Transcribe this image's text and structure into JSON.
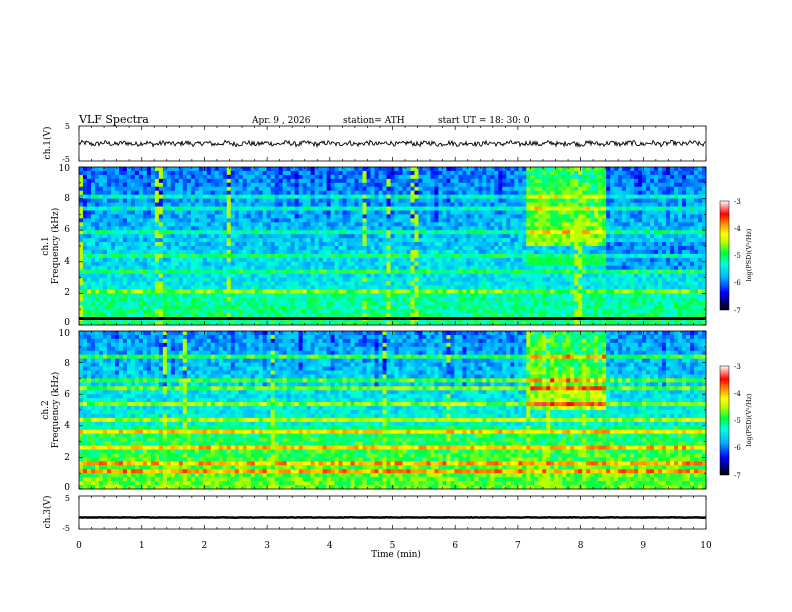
{
  "header": {
    "title": "VLF Spectra",
    "date": "Apr. 9 , 2026",
    "station": "station= ATH",
    "start": "start UT = 18: 30: 0"
  },
  "chart_data": [
    {
      "type": "line",
      "panel": "ch1-waveform",
      "ylabel": "ch.1(V)",
      "ylim": [
        -5,
        5
      ],
      "yticks": [
        "5",
        "-5"
      ],
      "xlim": [
        0,
        10
      ],
      "baseline": 0
    },
    {
      "type": "heatmap",
      "panel": "ch1-spectrogram",
      "ylabel": "ch.1 Frequency (kHz)",
      "ylabel_line1": "ch.1",
      "ylabel_line2": "Frequency (kHz)",
      "ylim": [
        0,
        10
      ],
      "yticks": [
        "0",
        "2",
        "4",
        "6",
        "8",
        "10"
      ],
      "xlim": [
        0,
        10
      ],
      "colorbar": {
        "label": "log(PSD)(V²/Hz)",
        "ticks": [
          "-3",
          "-4",
          "-5",
          "-6",
          "-7"
        ],
        "range": [
          -7,
          -3
        ]
      },
      "features": {
        "bright_band_time": [
          7.1,
          8.35
        ],
        "bright_band_freq": [
          3.8,
          4.2
        ]
      }
    },
    {
      "type": "heatmap",
      "panel": "ch2-spectrogram",
      "ylabel": "ch.2 Frequency (kHz)",
      "ylabel_line1": "ch.2",
      "ylabel_line2": "Frequency (kHz)",
      "ylim": [
        0,
        10
      ],
      "yticks": [
        "0",
        "2",
        "4",
        "6",
        "8",
        "10"
      ],
      "xlim": [
        0,
        10
      ],
      "colorbar": {
        "label": "log(PSD)(V²/Hz)",
        "ticks": [
          "-3",
          "-4",
          "-5",
          "-6",
          "-7"
        ],
        "range": [
          -7,
          -3
        ]
      }
    },
    {
      "type": "line",
      "panel": "ch3-waveform",
      "ylabel": "ch.3(V)",
      "ylim": [
        -5,
        5
      ],
      "yticks": [
        "5",
        "-5"
      ],
      "xlim": [
        0,
        10
      ],
      "baseline": -1.5
    }
  ],
  "xaxis": {
    "label": "Time (min)",
    "ticks": [
      "0",
      "1",
      "2",
      "3",
      "4",
      "5",
      "6",
      "7",
      "8",
      "9",
      "10"
    ]
  },
  "colors": {
    "waveform": "#000000"
  }
}
